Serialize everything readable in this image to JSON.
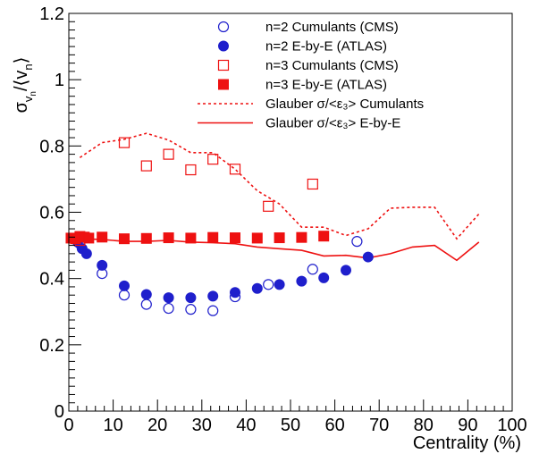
{
  "chart_data": {
    "type": "scatter",
    "xlabel": "Centrality (%)",
    "ylabel": "σ_{v_n}/⟨v_n⟩",
    "xlim": [
      0,
      100
    ],
    "ylim": [
      0,
      1.2
    ],
    "xticks": [
      {
        "value": 0,
        "label": "0"
      },
      {
        "value": 10,
        "label": "10"
      },
      {
        "value": 20,
        "label": "20"
      },
      {
        "value": 30,
        "label": "30"
      },
      {
        "value": 40,
        "label": "40"
      },
      {
        "value": 50,
        "label": "50"
      },
      {
        "value": 60,
        "label": "60"
      },
      {
        "value": 70,
        "label": "70"
      },
      {
        "value": 80,
        "label": "80"
      },
      {
        "value": 90,
        "label": "90"
      },
      {
        "value": 100,
        "label": "100"
      }
    ],
    "yticks": [
      {
        "value": 0,
        "label": "0"
      },
      {
        "value": 0.2,
        "label": "0.2"
      },
      {
        "value": 0.4,
        "label": "0.4"
      },
      {
        "value": 0.6,
        "label": "0.6"
      },
      {
        "value": 0.8,
        "label": "0.8"
      },
      {
        "value": 1.0,
        "label": "1"
      },
      {
        "value": 1.2,
        "label": "1.2"
      }
    ],
    "grid": false,
    "legend_position": "top-right",
    "series": [
      {
        "name": "n=2 Cumulants (CMS)",
        "marker": "circle-open",
        "color": "#1f1fcc",
        "x": [
          2.5,
          7.5,
          12.5,
          17.5,
          22.5,
          27.5,
          32.5,
          37.5,
          45,
          55,
          65
        ],
        "y": [
          0.505,
          0.415,
          0.35,
          0.322,
          0.31,
          0.307,
          0.303,
          0.345,
          0.382,
          0.428,
          0.512
        ]
      },
      {
        "name": "n=2 E-by-E (ATLAS)",
        "marker": "circle-filled",
        "color": "#1f1fcc",
        "x": [
          1,
          2,
          3,
          4,
          7.5,
          12.5,
          17.5,
          22.5,
          27.5,
          32.5,
          37.5,
          42.5,
          47.5,
          52.5,
          57.5,
          62.5,
          67.5
        ],
        "y": [
          0.52,
          0.51,
          0.49,
          0.475,
          0.44,
          0.378,
          0.352,
          0.342,
          0.342,
          0.347,
          0.358,
          0.37,
          0.382,
          0.392,
          0.402,
          0.425,
          0.465
        ]
      },
      {
        "name": "n=3 Cumulants (CMS)",
        "marker": "square-open",
        "color": "#ee1111",
        "x": [
          2.5,
          12.5,
          17.5,
          22.5,
          27.5,
          32.5,
          37.5,
          45,
          55
        ],
        "y": [
          0.515,
          0.81,
          0.74,
          0.775,
          0.728,
          0.76,
          0.73,
          0.618,
          0.685
        ]
      },
      {
        "name": "n=3 E-by-E (ATLAS)",
        "marker": "square-filled",
        "color": "#ee1111",
        "x": [
          0.5,
          1.5,
          2.5,
          3.5,
          4.5,
          7.5,
          12.5,
          17.5,
          22.5,
          27.5,
          32.5,
          37.5,
          42.5,
          47.5,
          52.5,
          57.5
        ],
        "y": [
          0.522,
          0.52,
          0.527,
          0.525,
          0.522,
          0.525,
          0.52,
          0.521,
          0.523,
          0.522,
          0.524,
          0.523,
          0.522,
          0.523,
          0.524,
          0.528
        ]
      },
      {
        "name": "Glauber σ/<ε₃> Cumulants",
        "line": "dashed",
        "color": "#ee1111",
        "x": [
          2.5,
          7.5,
          12.5,
          17.5,
          22.5,
          27.5,
          32.5,
          37.5,
          42.5,
          47.5,
          52.5,
          57.5,
          62.5,
          67.5,
          72.5,
          77.5,
          82.5,
          87.5,
          92.5
        ],
        "y": [
          0.765,
          0.81,
          0.82,
          0.838,
          0.818,
          0.78,
          0.78,
          0.73,
          0.665,
          0.625,
          0.555,
          0.555,
          0.53,
          0.55,
          0.612,
          0.615,
          0.615,
          0.52,
          0.595
        ]
      },
      {
        "name": "Glauber σ/<ε₃> E-by-E",
        "line": "solid",
        "color": "#ee1111",
        "x": [
          2.5,
          7.5,
          12.5,
          17.5,
          22.5,
          27.5,
          32.5,
          37.5,
          42.5,
          47.5,
          52.5,
          57.5,
          62.5,
          67.5,
          72.5,
          77.5,
          82.5,
          87.5,
          92.5
        ],
        "y": [
          0.52,
          0.518,
          0.512,
          0.512,
          0.515,
          0.51,
          0.508,
          0.505,
          0.495,
          0.49,
          0.485,
          0.468,
          0.47,
          0.462,
          0.475,
          0.495,
          0.5,
          0.455,
          0.51
        ]
      }
    ]
  }
}
